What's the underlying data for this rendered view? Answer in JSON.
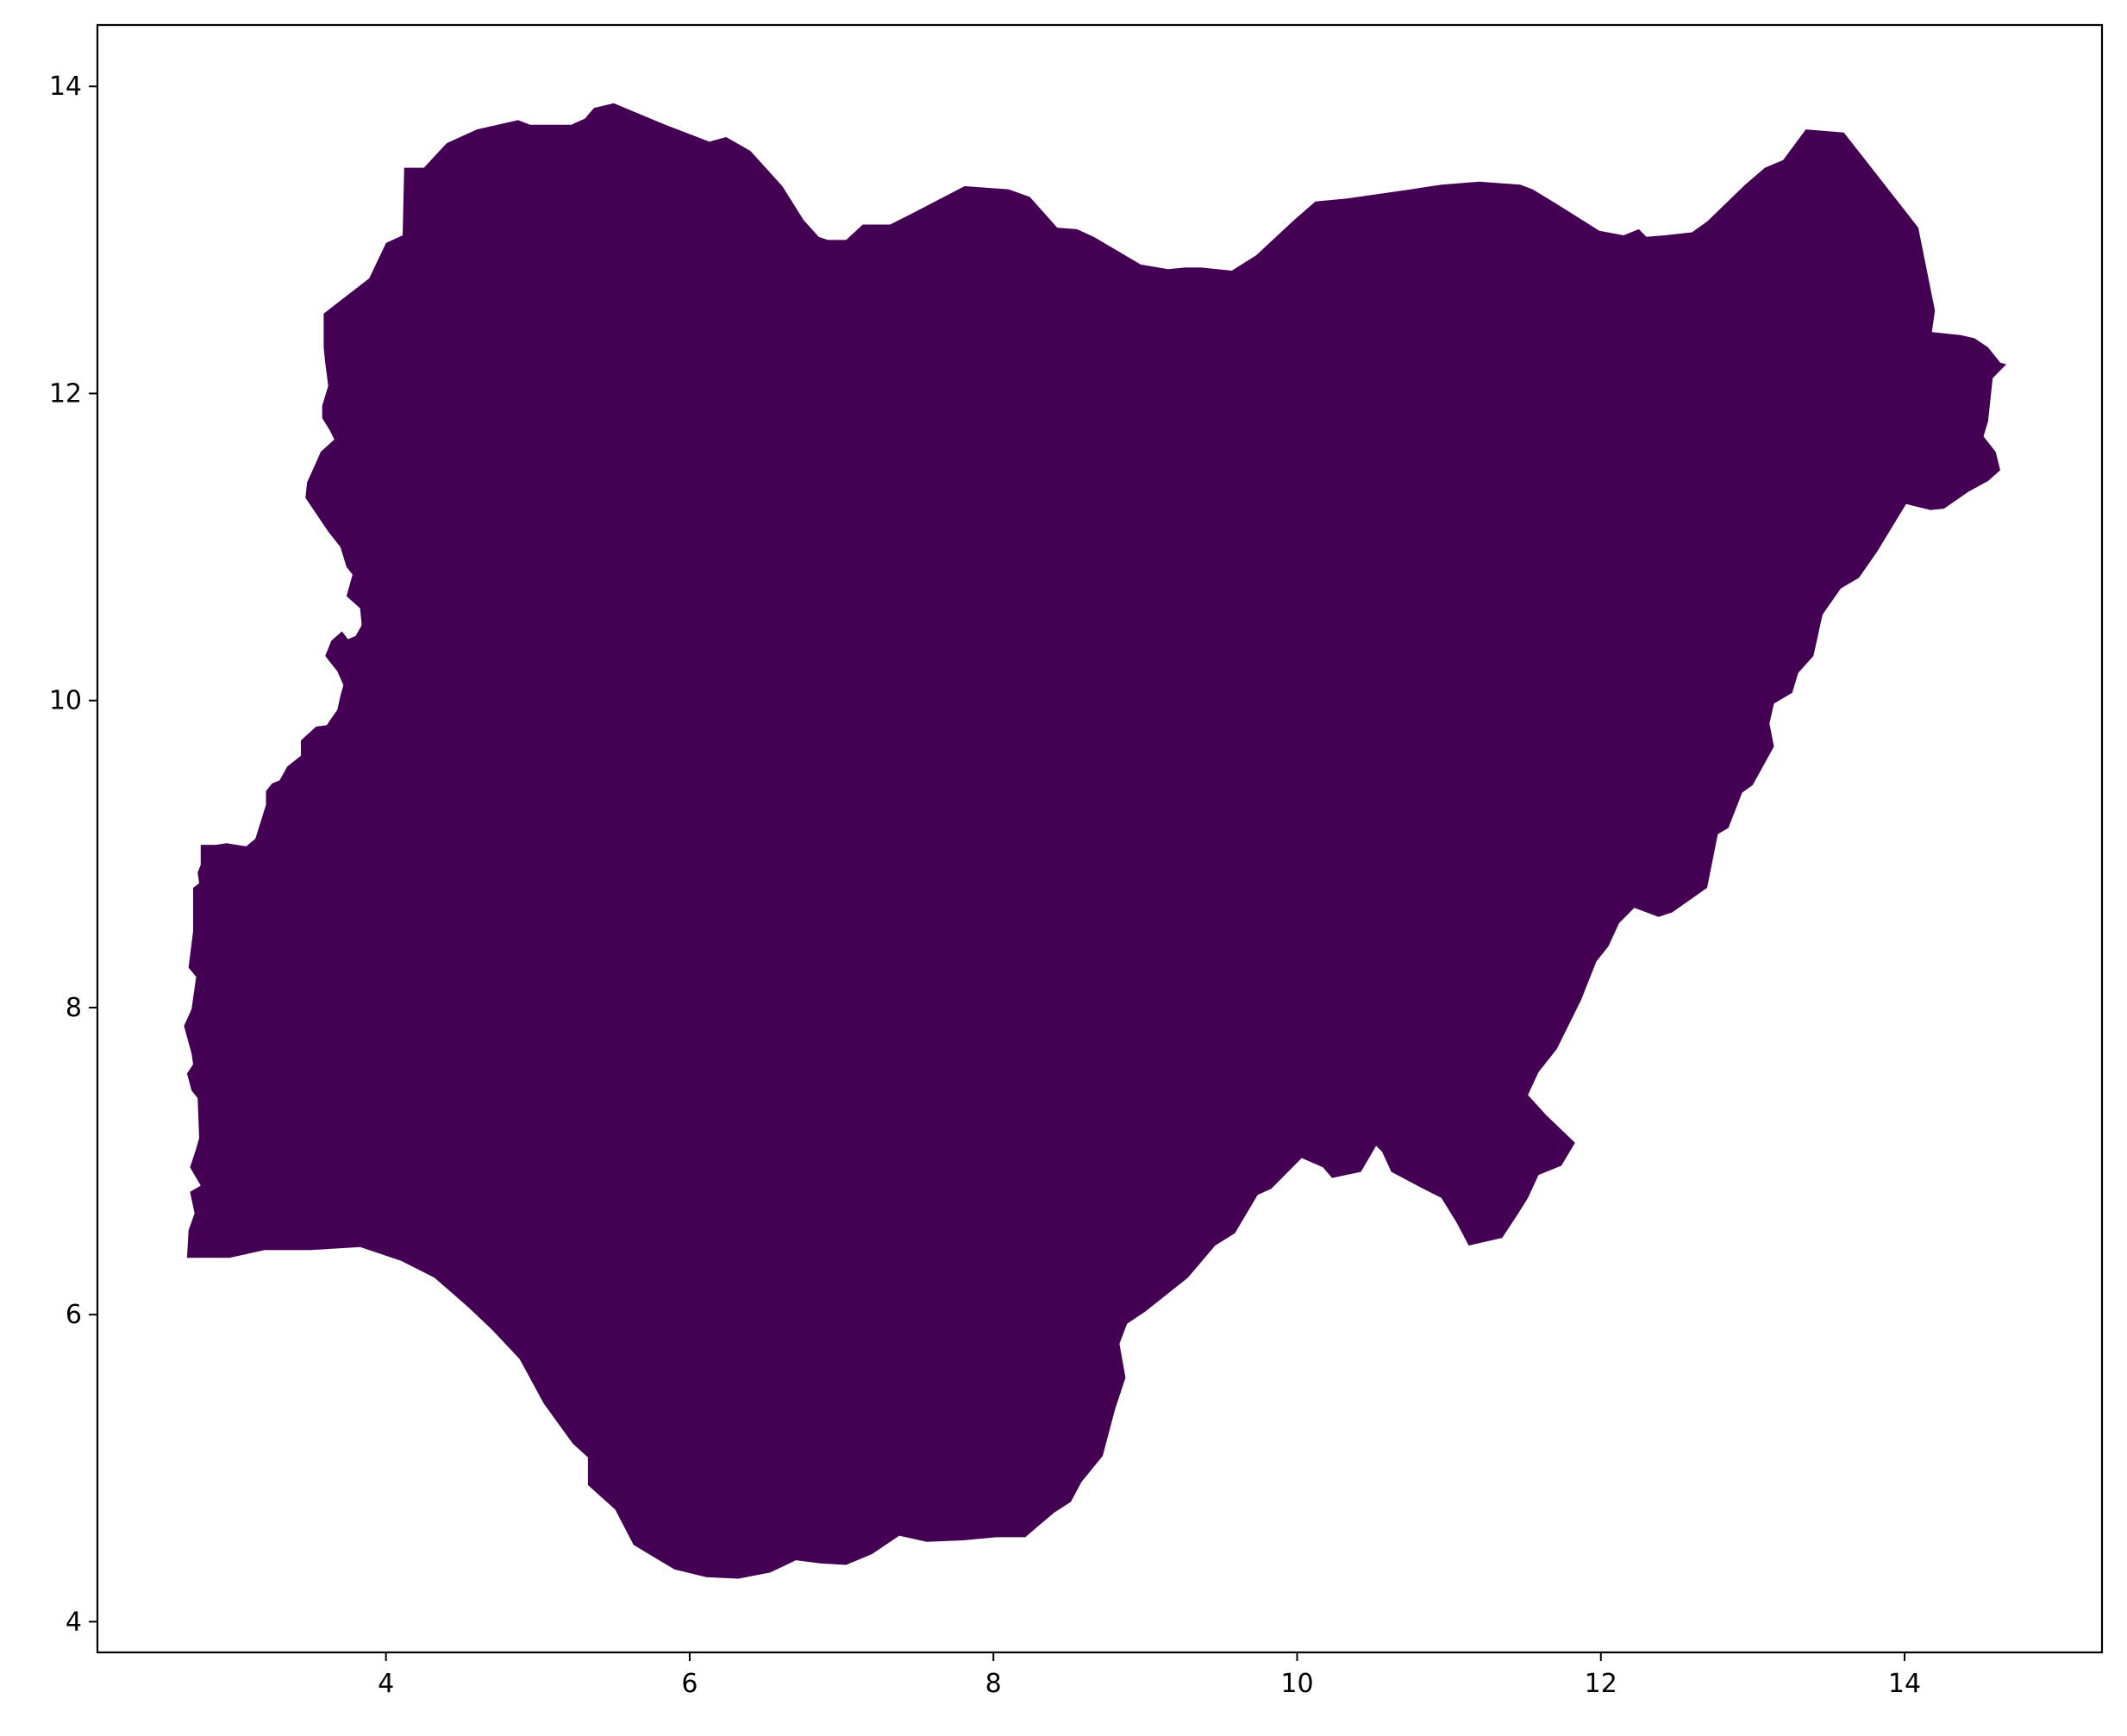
{
  "map": {
    "region_fill": "#440154",
    "background": "#ffffff",
    "xlim": [
      2.1,
      15.3
    ],
    "ylim": [
      3.8,
      14.4
    ],
    "x_ticks": [
      {
        "value": 4,
        "label": "4"
      },
      {
        "value": 6,
        "label": "6"
      },
      {
        "value": 8,
        "label": "8"
      },
      {
        "value": 10,
        "label": "10"
      },
      {
        "value": 12,
        "label": "12"
      },
      {
        "value": 14,
        "label": "14"
      }
    ],
    "y_ticks": [
      {
        "value": 4,
        "label": "4"
      },
      {
        "value": 6,
        "label": "6"
      },
      {
        "value": 8,
        "label": "8"
      },
      {
        "value": 10,
        "label": "10"
      },
      {
        "value": 12,
        "label": "12"
      },
      {
        "value": 14,
        "label": "14"
      }
    ]
  }
}
